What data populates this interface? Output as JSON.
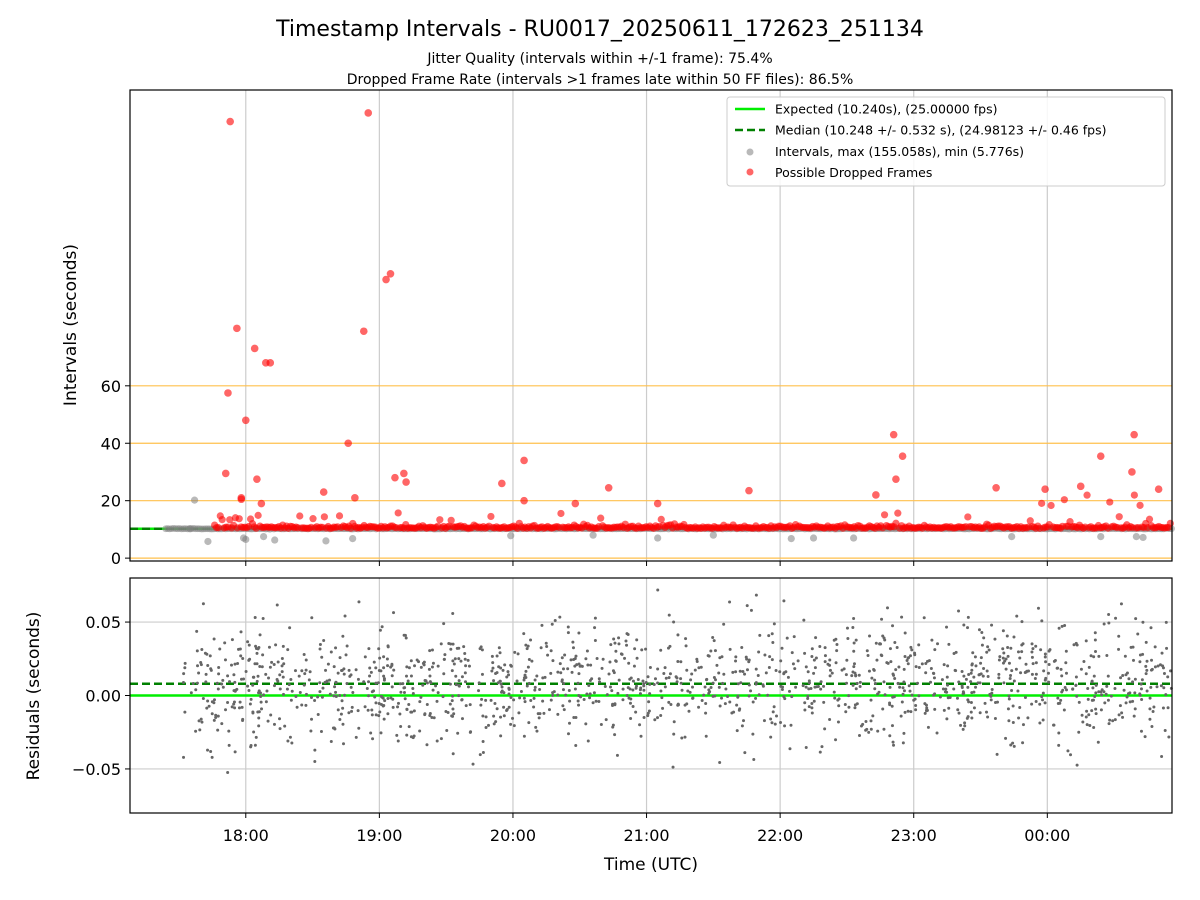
{
  "colors": {
    "expected": "#00ee00",
    "median": "#008000",
    "intervals": "#808080",
    "dropped": "#ff0000",
    "residual_points": "#666666",
    "reference_lines": "#ffc04d",
    "grid": "#cccccc"
  },
  "chart_data": [
    {
      "type": "scatter",
      "title": "Timestamp Intervals - RU0017_20250611_172623_251134",
      "subtitle_1": "Jitter Quality (intervals within +/-1 frame): 75.4%",
      "subtitle_2": "Dropped Frame Rate (intervals >1 frames late within 50 FF files): 86.5%",
      "xlabel": "",
      "ylabel": "Intervals (seconds)",
      "x_axis": "time-of-day UTC (2025-06-11 17:06 to 2025-06-12 00:56)",
      "xlim": [
        "17:08",
        "00:56"
      ],
      "xticks": [
        "18:00",
        "19:00",
        "20:00",
        "21:00",
        "22:00",
        "23:00",
        "00:00"
      ],
      "ylim": [
        -1,
        163
      ],
      "yticks": [
        0,
        20,
        40,
        60
      ],
      "grid": "vertical",
      "horizontal_reference_lines": [
        0,
        20,
        40,
        60
      ],
      "legend_placement": "upper right",
      "legend": [
        "Expected (10.240s), (25.00000 fps)",
        "Median (10.248 +/- 0.532 s), (24.98123 +/- 0.46 fps)",
        "Intervals, max (155.058s), min (5.776s)",
        "Possible Dropped Frames"
      ],
      "expected_interval": 10.24,
      "median_interval": 10.248,
      "series": [
        {
          "name": "Possible Dropped Frames",
          "note": "notable outliers; a dense band of dropped frames lies at ~10.3-12 s across the whole time range",
          "points": [
            {
              "t": "17:53",
              "y": 152
            },
            {
              "t": "17:52",
              "y": 57.5
            },
            {
              "t": "17:51",
              "y": 29.5
            },
            {
              "t": "17:56",
              "y": 80
            },
            {
              "t": "17:58",
              "y": 21
            },
            {
              "t": "18:00",
              "y": 48
            },
            {
              "t": "18:04",
              "y": 73
            },
            {
              "t": "18:05",
              "y": 27.5
            },
            {
              "t": "18:07",
              "y": 19
            },
            {
              "t": "18:09",
              "y": 68
            },
            {
              "t": "18:11",
              "y": 68
            },
            {
              "t": "17:58",
              "y": 20.5
            },
            {
              "t": "18:35",
              "y": 23
            },
            {
              "t": "18:46",
              "y": 40
            },
            {
              "t": "18:49",
              "y": 21
            },
            {
              "t": "18:53",
              "y": 79
            },
            {
              "t": "18:55",
              "y": 155
            },
            {
              "t": "19:03",
              "y": 97
            },
            {
              "t": "19:05",
              "y": 99
            },
            {
              "t": "19:07",
              "y": 28
            },
            {
              "t": "19:11",
              "y": 29.5
            },
            {
              "t": "19:12",
              "y": 26.5
            },
            {
              "t": "19:55",
              "y": 26
            },
            {
              "t": "20:05",
              "y": 20
            },
            {
              "t": "20:05",
              "y": 34
            },
            {
              "t": "20:28",
              "y": 19
            },
            {
              "t": "20:43",
              "y": 24.5
            },
            {
              "t": "21:05",
              "y": 19
            },
            {
              "t": "21:46",
              "y": 23.5
            },
            {
              "t": "22:43",
              "y": 22
            },
            {
              "t": "22:51",
              "y": 43
            },
            {
              "t": "22:52",
              "y": 27.5
            },
            {
              "t": "22:55",
              "y": 35.5
            },
            {
              "t": "23:37",
              "y": 24.5
            },
            {
              "t": "23:59",
              "y": 24
            },
            {
              "t": "00:15",
              "y": 25
            },
            {
              "t": "00:24",
              "y": 35.5
            },
            {
              "t": "00:38",
              "y": 30
            },
            {
              "t": "00:39",
              "y": 43
            },
            {
              "t": "00:50",
              "y": 24
            }
          ]
        },
        {
          "name": "Intervals",
          "note": "regular intervals cluster at ~10.2 s; low outliers near 5.8-8 s",
          "points": [
            {
              "t": "17:35",
              "y": 10.2
            },
            {
              "t": "17:37",
              "y": 20.2
            },
            {
              "t": "17:43",
              "y": 5.8
            },
            {
              "t": "17:59",
              "y": 7
            },
            {
              "t": "18:00",
              "y": 6.5
            },
            {
              "t": "18:08",
              "y": 7.5
            },
            {
              "t": "18:13",
              "y": 6.3
            },
            {
              "t": "18:36",
              "y": 6
            },
            {
              "t": "18:48",
              "y": 6.8
            },
            {
              "t": "19:59",
              "y": 7.8
            },
            {
              "t": "20:36",
              "y": 8
            },
            {
              "t": "21:05",
              "y": 7
            },
            {
              "t": "21:30",
              "y": 8
            },
            {
              "t": "22:05",
              "y": 6.8
            },
            {
              "t": "22:15",
              "y": 7
            },
            {
              "t": "22:33",
              "y": 7
            },
            {
              "t": "23:44",
              "y": 7.5
            },
            {
              "t": "00:24",
              "y": 7.5
            },
            {
              "t": "00:40",
              "y": 7.5
            },
            {
              "t": "00:43",
              "y": 7.2
            }
          ]
        }
      ]
    },
    {
      "type": "scatter",
      "title": "",
      "xlabel": "Time (UTC)",
      "ylabel": "Residuals (seconds)",
      "xlim": [
        "17:08",
        "00:56"
      ],
      "xticks": [
        "18:00",
        "19:00",
        "20:00",
        "21:00",
        "22:00",
        "23:00",
        "00:00"
      ],
      "ylim": [
        -0.08,
        0.08
      ],
      "yticks": [
        -0.05,
        0.0,
        0.05
      ],
      "ytick_labels": [
        "−0.05",
        "0.00",
        "0.05"
      ],
      "grid": "both",
      "expected_residual": 0.0,
      "median_residual": 0.008,
      "series": [
        {
          "name": "Residuals",
          "note": "approx. 1500 residual points, roughly normal around +0.008 s with spread ~0.02 s, clipped at +/-0.08",
          "distribution": {
            "center": 0.008,
            "sd": 0.02,
            "count": 1500,
            "t_start": "17:32",
            "t_end": "00:56"
          }
        }
      ]
    }
  ]
}
